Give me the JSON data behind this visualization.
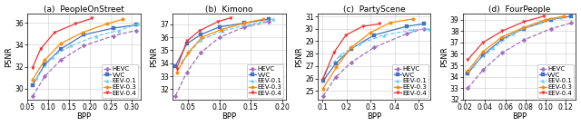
{
  "subplots": [
    {
      "title": "(a)  PeopleOnStreet",
      "xlabel": "BPP",
      "ylabel": "PSNR",
      "xlim": [
        0.05,
        0.32
      ],
      "ylim": [
        29.0,
        36.8
      ],
      "xticks": [
        0.05,
        0.1,
        0.15,
        0.2,
        0.25,
        0.3
      ],
      "yticks": [
        30,
        32,
        34,
        36
      ],
      "series": [
        {
          "label": "HEVC",
          "color": "#A070C0",
          "linestyle": "--",
          "marker": "D",
          "x": [
            0.063,
            0.092,
            0.13,
            0.185,
            0.255,
            0.31
          ],
          "y": [
            29.3,
            31.1,
            32.6,
            33.9,
            34.8,
            35.3
          ]
        },
        {
          "label": "VVC",
          "color": "#4472C4",
          "linestyle": "-",
          "marker": "s",
          "x": [
            0.063,
            0.092,
            0.13,
            0.185,
            0.255,
            0.31
          ],
          "y": [
            30.3,
            32.2,
            33.6,
            34.9,
            35.5,
            35.8
          ]
        },
        {
          "label": "EEV-0.1",
          "color": "#70CCEE",
          "linestyle": "--",
          "marker": "^",
          "x": [
            0.073,
            0.11,
            0.155,
            0.215,
            0.27,
            0.315
          ],
          "y": [
            31.0,
            32.9,
            33.9,
            34.8,
            35.3,
            35.9
          ]
        },
        {
          "label": "EEV-0.3",
          "color": "#FF8C00",
          "linestyle": "-",
          "marker": "o",
          "x": [
            0.063,
            0.092,
            0.13,
            0.182,
            0.24,
            0.278
          ],
          "y": [
            30.8,
            32.6,
            34.1,
            35.1,
            35.9,
            36.3
          ]
        },
        {
          "label": "EEV-0.4",
          "color": "#EE3333",
          "linestyle": "-",
          "marker": "v",
          "x": [
            0.063,
            0.082,
            0.115,
            0.165,
            0.205
          ],
          "y": [
            31.9,
            33.6,
            35.1,
            35.9,
            36.4
          ]
        }
      ]
    },
    {
      "title": "(b)  Kimono",
      "xlabel": "BPP",
      "ylabel": "PSNR",
      "xlim": [
        0.025,
        0.205
      ],
      "ylim": [
        31.2,
        37.8
      ],
      "xticks": [
        0.05,
        0.1,
        0.15,
        0.2
      ],
      "yticks": [
        32,
        33,
        34,
        35,
        36,
        37
      ],
      "series": [
        {
          "label": "HEVC",
          "color": "#A070C0",
          "linestyle": "--",
          "marker": "D",
          "x": [
            0.03,
            0.048,
            0.07,
            0.1,
            0.14,
            0.178
          ],
          "y": [
            31.5,
            33.3,
            34.8,
            36.0,
            36.8,
            37.2
          ]
        },
        {
          "label": "VVC",
          "color": "#4472C4",
          "linestyle": "-",
          "marker": "s",
          "x": [
            0.03,
            0.048,
            0.07,
            0.1,
            0.14,
            0.178
          ],
          "y": [
            33.8,
            35.5,
            36.2,
            36.8,
            37.1,
            37.4
          ]
        },
        {
          "label": "EEV-0.1",
          "color": "#70CCEE",
          "linestyle": "--",
          "marker": "^",
          "x": [
            0.04,
            0.07,
            0.105,
            0.148,
            0.185
          ],
          "y": [
            34.1,
            35.8,
            36.5,
            37.0,
            37.4
          ]
        },
        {
          "label": "EEV-0.3",
          "color": "#FF8C00",
          "linestyle": "-",
          "marker": "o",
          "x": [
            0.032,
            0.05,
            0.072,
            0.103,
            0.14,
            0.17
          ],
          "y": [
            33.3,
            34.8,
            36.0,
            36.6,
            37.1,
            37.4
          ]
        },
        {
          "label": "EEV-0.4",
          "color": "#EE3333",
          "linestyle": "-",
          "marker": "v",
          "x": [
            0.032,
            0.048,
            0.068,
            0.097,
            0.118
          ],
          "y": [
            33.6,
            35.7,
            36.5,
            37.2,
            37.5
          ]
        }
      ]
    },
    {
      "title": "(c)  PartyScene",
      "xlabel": "BPP",
      "ylabel": "PSNR",
      "xlim": [
        0.08,
        0.55
      ],
      "ylim": [
        24.3,
        31.2
      ],
      "xticks": [
        0.1,
        0.2,
        0.3,
        0.4,
        0.5
      ],
      "yticks": [
        25,
        26,
        27,
        28,
        29,
        30,
        31
      ],
      "series": [
        {
          "label": "HEVC",
          "color": "#A070C0",
          "linestyle": "--",
          "marker": "D",
          "x": [
            0.103,
            0.155,
            0.22,
            0.315,
            0.45,
            0.52
          ],
          "y": [
            24.6,
            26.1,
            27.3,
            28.5,
            29.6,
            30.0
          ]
        },
        {
          "label": "VVC",
          "color": "#4472C4",
          "linestyle": "-",
          "marker": "s",
          "x": [
            0.103,
            0.155,
            0.22,
            0.315,
            0.45,
            0.52
          ],
          "y": [
            25.8,
            27.2,
            28.4,
            29.5,
            30.2,
            30.4
          ]
        },
        {
          "label": "EEV-0.1",
          "color": "#70CCEE",
          "linestyle": "--",
          "marker": "^",
          "x": [
            0.11,
            0.175,
            0.255,
            0.355,
            0.475,
            0.54
          ],
          "y": [
            26.5,
            27.9,
            28.8,
            29.5,
            29.9,
            30.0
          ]
        },
        {
          "label": "EEV-0.3",
          "color": "#FF8C00",
          "linestyle": "-",
          "marker": "o",
          "x": [
            0.103,
            0.158,
            0.22,
            0.3,
            0.382,
            0.478
          ],
          "y": [
            25.2,
            26.9,
            28.5,
            29.7,
            30.5,
            30.8
          ]
        },
        {
          "label": "EEV-0.4",
          "color": "#EE3333",
          "linestyle": "-",
          "marker": "v",
          "x": [
            0.103,
            0.148,
            0.198,
            0.268,
            0.338
          ],
          "y": [
            26.0,
            28.1,
            29.5,
            30.2,
            30.4
          ]
        }
      ]
    },
    {
      "title": "(d)  FourPeople",
      "xlabel": "BPP",
      "ylabel": "PSNR",
      "xlim": [
        0.018,
        0.13
      ],
      "ylim": [
        32.0,
        39.5
      ],
      "xticks": [
        0.02,
        0.04,
        0.06,
        0.08,
        0.1,
        0.12
      ],
      "yticks": [
        32,
        33,
        34,
        35,
        36,
        37,
        38,
        39
      ],
      "series": [
        {
          "label": "HEVC",
          "color": "#A070C0",
          "linestyle": "--",
          "marker": "D",
          "x": [
            0.023,
            0.038,
            0.057,
            0.078,
            0.105,
            0.125
          ],
          "y": [
            33.0,
            34.6,
            36.1,
            37.2,
            38.2,
            38.7
          ]
        },
        {
          "label": "VVC",
          "color": "#4472C4",
          "linestyle": "-",
          "marker": "s",
          "x": [
            0.023,
            0.038,
            0.057,
            0.078,
            0.105,
            0.125
          ],
          "y": [
            34.3,
            35.9,
            37.3,
            38.2,
            39.0,
            39.3
          ]
        },
        {
          "label": "EEV-0.1",
          "color": "#70CCEE",
          "linestyle": "--",
          "marker": "^",
          "x": [
            0.028,
            0.048,
            0.068,
            0.095,
            0.115
          ],
          "y": [
            35.0,
            36.5,
            37.8,
            38.8,
            39.2
          ]
        },
        {
          "label": "EEV-0.3",
          "color": "#FF8C00",
          "linestyle": "-",
          "marker": "o",
          "x": [
            0.023,
            0.038,
            0.057,
            0.078,
            0.1,
            0.118
          ],
          "y": [
            34.5,
            36.2,
            37.5,
            38.3,
            39.0,
            39.3
          ]
        },
        {
          "label": "EEV-0.4",
          "color": "#EE3333",
          "linestyle": "-",
          "marker": "v",
          "x": [
            0.023,
            0.038,
            0.057,
            0.078,
            0.098
          ],
          "y": [
            35.5,
            37.0,
            38.0,
            38.8,
            39.3
          ]
        }
      ]
    }
  ],
  "markersize": 2.5,
  "linewidth": 0.9,
  "fontsize_title": 6.5,
  "fontsize_axis": 6.0,
  "fontsize_tick": 5.5,
  "fontsize_legend": 5.0
}
